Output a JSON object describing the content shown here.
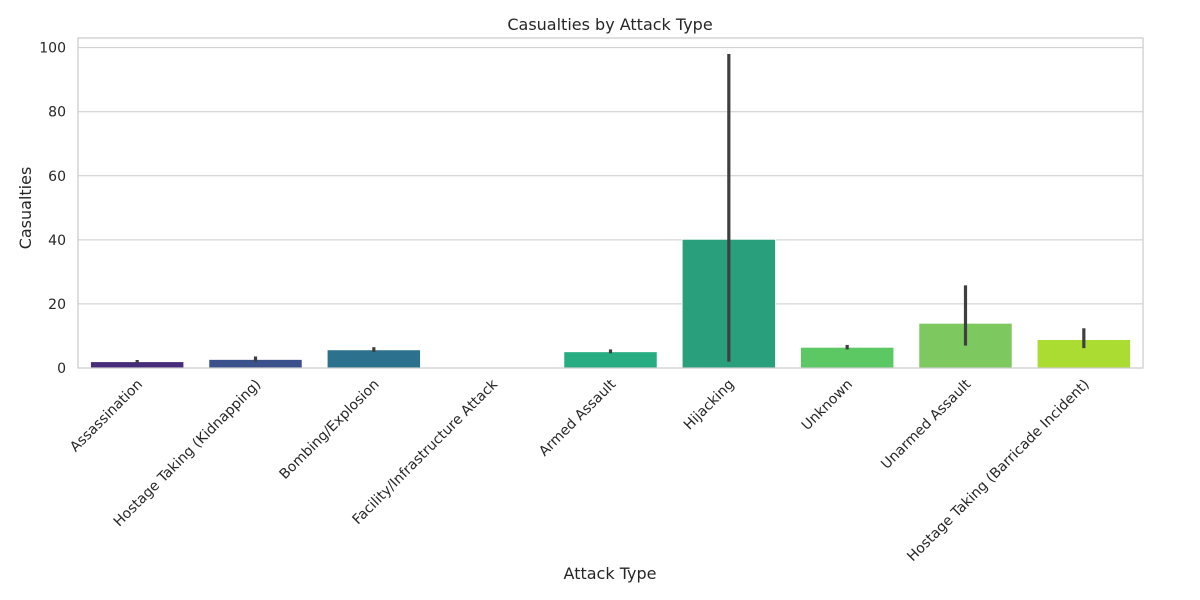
{
  "chart_data": {
    "type": "bar",
    "title": "Casualties by Attack Type",
    "xlabel": "Attack Type",
    "ylabel": "Casualties",
    "ylim": [
      0,
      103
    ],
    "yticks": [
      0,
      20,
      40,
      60,
      80,
      100
    ],
    "grid": true,
    "categories": [
      "Assassination",
      "Hostage Taking (Kidnapping)",
      "Bombing/Explosion",
      "Facility/Infrastructure Attack",
      "Armed Assault",
      "Hijacking",
      "Unknown",
      "Unarmed Assault",
      "Hostage Taking (Barricade Incident)"
    ],
    "values": [
      2.0,
      2.7,
      5.7,
      0.0,
      5.1,
      40.2,
      6.5,
      14.0,
      8.9
    ],
    "error_low": [
      1.5,
      2.0,
      5.0,
      0.0,
      4.6,
      2.0,
      5.8,
      7.0,
      6.2
    ],
    "error_high": [
      2.5,
      3.6,
      6.5,
      0.0,
      5.8,
      98.0,
      7.2,
      25.8,
      12.4
    ],
    "colors": [
      "#472c7a",
      "#3b518b",
      "#2c718e",
      "#21908d",
      "#27ad81",
      "#2a9f7c",
      "#5cc863",
      "#7dc95f",
      "#aadc32"
    ]
  }
}
